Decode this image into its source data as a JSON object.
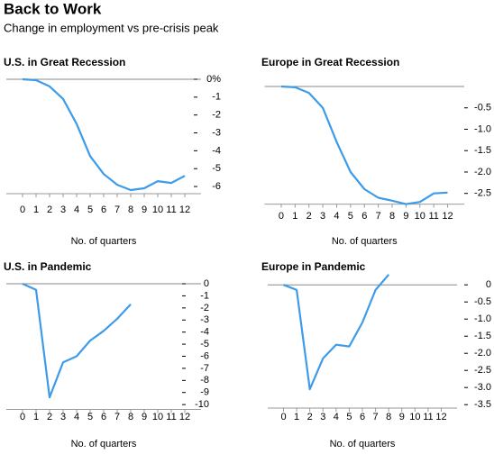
{
  "title": "Back to Work",
  "subtitle": "Change in employment vs pre-crisis peak",
  "chart_data": [
    {
      "type": "line",
      "title": "U.S. in Great Recession",
      "x_label": "No. of quarters",
      "color": "#3d9be9",
      "x": [
        0,
        1,
        2,
        3,
        4,
        5,
        6,
        7,
        8,
        9,
        10,
        11,
        12
      ],
      "values": [
        0,
        -0.05,
        -0.4,
        -1.1,
        -2.5,
        -4.3,
        -5.3,
        -5.9,
        -6.2,
        -6.1,
        -5.7,
        -5.8,
        -5.4
      ],
      "xlim": [
        -1.2,
        13.2
      ],
      "xticks": [
        0,
        1,
        2,
        3,
        4,
        5,
        6,
        7,
        8,
        9,
        10,
        11,
        12
      ],
      "ylim": [
        -6.4,
        0.1
      ],
      "yticks": [
        {
          "value": 0,
          "label": "0%"
        },
        -1,
        -2,
        -3,
        -4,
        -5,
        -6
      ]
    },
    {
      "type": "line",
      "title": "Europe in Great Recession",
      "x_label": "No. of quarters",
      "color": "#3d9be9",
      "x": [
        0,
        1,
        2,
        3,
        4,
        5,
        6,
        7,
        8,
        9,
        10,
        11,
        12
      ],
      "values": [
        0,
        -0.02,
        -0.15,
        -0.5,
        -1.3,
        -2.0,
        -2.4,
        -2.6,
        -2.67,
        -2.75,
        -2.7,
        -2.5,
        -2.48
      ],
      "xlim": [
        -1.2,
        13.2
      ],
      "xticks": [
        0,
        1,
        2,
        3,
        4,
        5,
        6,
        7,
        8,
        9,
        10,
        11,
        12
      ],
      "ylim": [
        -2.75,
        0.05
      ],
      "yticks": [
        -0.5,
        {
          "value": -1,
          "label": "-1.0"
        },
        -1.5,
        {
          "value": -2,
          "label": "-2.0"
        },
        -2.5
      ]
    },
    {
      "type": "line",
      "title": "U.S. in Pandemic",
      "x_label": "No. of quarters",
      "color": "#3d9be9",
      "x": [
        0,
        1,
        2,
        3,
        4,
        5,
        6,
        7,
        8
      ],
      "values": [
        0,
        -0.5,
        -9.4,
        -6.5,
        -6.0,
        -4.7,
        -3.9,
        -2.9,
        -1.7
      ],
      "xlim": [
        -1.2,
        13.2
      ],
      "xticks": [
        0,
        1,
        2,
        3,
        4,
        5,
        6,
        7,
        8,
        9,
        10,
        11,
        12
      ],
      "ylim": [
        -10.4,
        0.3
      ],
      "yticks": [
        0,
        -1,
        -2,
        -3,
        -4,
        -5,
        -6,
        -7,
        -8,
        -9,
        -10
      ]
    },
    {
      "type": "line",
      "title": "Europe in Pandemic",
      "x_label": "No. of quarters",
      "color": "#3d9be9",
      "x": [
        0,
        1,
        2,
        3,
        4,
        5,
        6,
        7,
        8
      ],
      "values": [
        0,
        -0.15,
        -3.05,
        -2.15,
        -1.75,
        -1.8,
        -1.1,
        -0.15,
        0.3
      ],
      "xlim": [
        -1.2,
        13.2
      ],
      "xticks": [
        0,
        1,
        2,
        3,
        4,
        5,
        6,
        7,
        8,
        9,
        10,
        11,
        12
      ],
      "ylim": [
        -3.6,
        0.4
      ],
      "yticks": [
        0,
        -0.5,
        {
          "value": -1,
          "label": "-1.0"
        },
        -1.5,
        {
          "value": -2,
          "label": "-2.0"
        },
        -2.5,
        {
          "value": -3,
          "label": "-3.0"
        },
        -3.5
      ]
    }
  ]
}
